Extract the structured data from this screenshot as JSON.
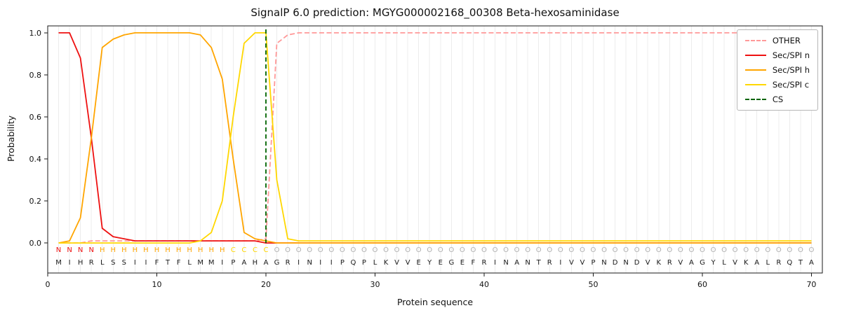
{
  "chart_data": {
    "type": "line",
    "title": "SignalP 6.0 prediction: MGYG000002168_00308 Beta-hexosaminidase",
    "xlabel": "Protein sequence",
    "ylabel": "Probability",
    "xlim": [
      0,
      71
    ],
    "ylim": [
      -0.143,
      1.033
    ],
    "x_ticks": [
      0,
      10,
      20,
      30,
      40,
      50,
      60,
      70
    ],
    "y_ticks": [
      0,
      0.2,
      0.4,
      0.6,
      0.8,
      1
    ],
    "x_first_residue": 1,
    "grid_color": "#ececec",
    "frame_color": "#1a1a1a",
    "legend_position": "upper right",
    "series": [
      {
        "name": "OTHER",
        "color": "#ff9999",
        "dash": true,
        "values": [
          0,
          0,
          0,
          0.01,
          0.01,
          0.01,
          0.01,
          0.01,
          0.01,
          0.01,
          0.01,
          0.01,
          0.01,
          0.01,
          0.01,
          0.01,
          0.01,
          0.01,
          0.01,
          0.02,
          0.95,
          0.99,
          1,
          1,
          1,
          1,
          1,
          1,
          1,
          1,
          1,
          1,
          1,
          1,
          1,
          1,
          1,
          1,
          1,
          1,
          1,
          1,
          1,
          1,
          1,
          1,
          1,
          1,
          1,
          1,
          1,
          1,
          1,
          1,
          1,
          1,
          1,
          1,
          1,
          1,
          1,
          1,
          1,
          1,
          1,
          1,
          1,
          1,
          1,
          1
        ]
      },
      {
        "name": "Sec/SPI n",
        "color": "#ee1111",
        "dash": false,
        "values": [
          1,
          1,
          0.88,
          0.5,
          0.07,
          0.03,
          0.02,
          0.01,
          0.01,
          0.01,
          0.01,
          0.01,
          0.01,
          0.01,
          0.01,
          0.01,
          0.01,
          0.01,
          0.01,
          0,
          0,
          0,
          0,
          0,
          0,
          0,
          0,
          0,
          0,
          0,
          0,
          0,
          0,
          0,
          0,
          0,
          0,
          0,
          0,
          0,
          0,
          0,
          0,
          0,
          0,
          0,
          0,
          0,
          0,
          0,
          0,
          0,
          0,
          0,
          0,
          0,
          0,
          0,
          0,
          0,
          0,
          0,
          0,
          0,
          0,
          0,
          0,
          0,
          0,
          0
        ]
      },
      {
        "name": "Sec/SPI h",
        "color": "#ffa500",
        "dash": false,
        "values": [
          0,
          0.01,
          0.12,
          0.5,
          0.93,
          0.97,
          0.99,
          1,
          1,
          1,
          1,
          1,
          1,
          0.99,
          0.93,
          0.78,
          0.4,
          0.05,
          0.02,
          0.01,
          0,
          0,
          0,
          0,
          0,
          0,
          0,
          0,
          0,
          0,
          0,
          0,
          0,
          0,
          0,
          0,
          0,
          0,
          0,
          0,
          0,
          0,
          0,
          0,
          0,
          0,
          0,
          0,
          0,
          0,
          0,
          0,
          0,
          0,
          0,
          0,
          0,
          0,
          0,
          0,
          0,
          0,
          0,
          0,
          0,
          0,
          0,
          0,
          0,
          0
        ]
      },
      {
        "name": "Sec/SPI c",
        "color": "#ffd700",
        "dash": false,
        "values": [
          0,
          0,
          0,
          0,
          0,
          0,
          0,
          0,
          0,
          0,
          0,
          0,
          0,
          0.01,
          0.05,
          0.2,
          0.6,
          0.95,
          1,
          1,
          0.3,
          0.02,
          0.01,
          0.01,
          0.01,
          0.01,
          0.01,
          0.01,
          0.01,
          0.01,
          0.01,
          0.01,
          0.01,
          0.01,
          0.01,
          0.01,
          0.01,
          0.01,
          0.01,
          0.01,
          0.01,
          0.01,
          0.01,
          0.01,
          0.01,
          0.01,
          0.01,
          0.01,
          0.01,
          0.01,
          0.01,
          0.01,
          0.01,
          0.01,
          0.01,
          0.01,
          0.01,
          0.01,
          0.01,
          0.01,
          0.01,
          0.01,
          0.01,
          0.01,
          0.01,
          0.01,
          0.01,
          0.01,
          0.01,
          0.01
        ]
      }
    ],
    "cs_line": {
      "name": "CS",
      "x": 20,
      "color": "#006400",
      "dash": true
    },
    "sequence": "MIHRLSSIIFTFLMMIPAHAGRINIIPQPLKVVEYEGEFRINANTRIVVPNDNDVKRVAGYLVKALRQTA",
    "region_labels": "NNNNHHHHHHHHHHHHCCCCOOOOOOOOOOOOOOOOOOOOOOOOOOOOOOOOOOOOOOOOOOOOOOOOOO",
    "region_colors": {
      "N": "#ee1111",
      "H": "#ffa500",
      "C": "#ffd700",
      "O": "#b0b0b0"
    }
  }
}
